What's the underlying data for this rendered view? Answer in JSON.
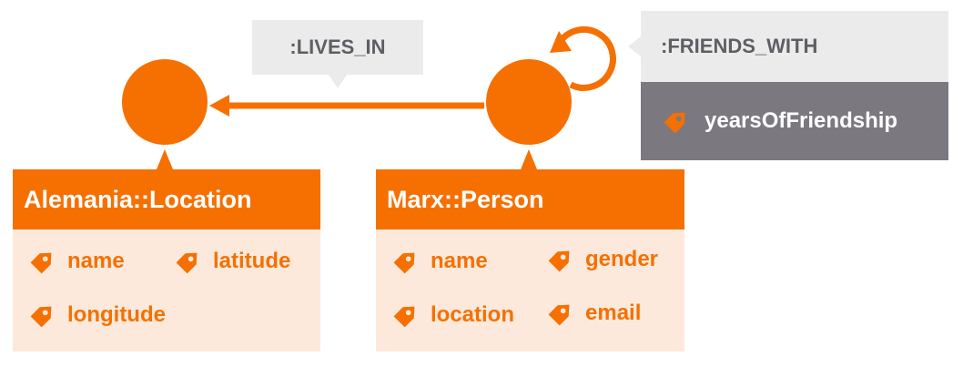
{
  "colors": {
    "accent": "#f57000",
    "label_bg": "#ebebec",
    "body_bg": "#fde9dc",
    "rel_props_bg": "#7b7880",
    "text_gray": "#5f5e63"
  },
  "icons": {
    "property": "tag-icon"
  },
  "nodes": {
    "location": {
      "header": "Alemania::Location",
      "props": [
        "name",
        "latitude",
        "longitude"
      ]
    },
    "person": {
      "header": "Marx::Person",
      "props": [
        "name",
        "gender",
        "location",
        "email"
      ]
    }
  },
  "edges": {
    "lives_in": {
      "label": ":LIVES_IN"
    },
    "friends_with": {
      "label": ":FRIENDS_WITH",
      "props": [
        "yearsOfFriendship"
      ]
    }
  }
}
